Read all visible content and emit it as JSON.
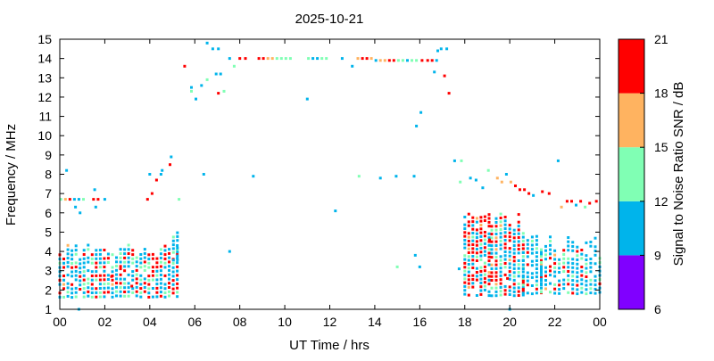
{
  "chart_data": {
    "type": "scatter",
    "title": "2025-10-21",
    "xlabel": "UT Time / hrs",
    "ylabel": "Frequency / MHz",
    "xlim": [
      0,
      24
    ],
    "ylim": [
      1,
      15
    ],
    "x_ticks": [
      "00",
      "02",
      "04",
      "06",
      "08",
      "10",
      "12",
      "14",
      "16",
      "18",
      "20",
      "22",
      "00"
    ],
    "y_ticks": [
      "1",
      "2",
      "3",
      "4",
      "5",
      "6",
      "7",
      "8",
      "9",
      "10",
      "11",
      "12",
      "13",
      "14",
      "15"
    ],
    "grid": false,
    "colorbar": {
      "label": "Signal to Noise Ratio SNR / dB",
      "range": [
        6,
        21
      ],
      "ticks": [
        "6",
        "9",
        "12",
        "15",
        "18",
        "21"
      ],
      "bands": [
        {
          "min": 6,
          "max": 9,
          "color": "#8000ff"
        },
        {
          "min": 9,
          "max": 12,
          "color": "#00b4eb"
        },
        {
          "min": 12,
          "max": 15,
          "color": "#80ffb4"
        },
        {
          "min": 15,
          "max": 18,
          "color": "#ffb360"
        },
        {
          "min": 18,
          "max": 21,
          "color": "#ff0000"
        }
      ]
    },
    "points": [
      [
        0.05,
        6.7,
        14
      ],
      [
        0.25,
        6.7,
        16
      ],
      [
        0.45,
        6.7,
        19
      ],
      [
        0.65,
        6.7,
        10
      ],
      [
        0.85,
        6.7,
        11
      ],
      [
        1.05,
        6.7,
        13
      ],
      [
        1.5,
        6.7,
        19
      ],
      [
        1.7,
        6.7,
        19
      ],
      [
        2.0,
        6.7,
        10
      ],
      [
        0.3,
        8.2,
        10
      ],
      [
        0.7,
        6.3,
        10
      ],
      [
        0.9,
        6.0,
        10
      ],
      [
        1.6,
        6.3,
        10
      ],
      [
        1.55,
        7.2,
        10
      ],
      [
        0.85,
        1.0,
        10
      ],
      [
        3.9,
        6.7,
        19
      ],
      [
        4.1,
        7.0,
        19
      ],
      [
        4.3,
        7.7,
        19
      ],
      [
        4.0,
        8.0,
        10
      ],
      [
        4.5,
        8.0,
        10
      ],
      [
        4.55,
        8.2,
        10
      ],
      [
        4.95,
        8.9,
        10
      ],
      [
        4.9,
        8.5,
        19
      ],
      [
        5.3,
        6.7,
        13
      ],
      [
        5.55,
        13.6,
        19
      ],
      [
        5.85,
        12.5,
        10
      ],
      [
        5.85,
        12.3,
        13
      ],
      [
        6.05,
        11.9,
        10
      ],
      [
        6.3,
        12.6,
        10
      ],
      [
        6.4,
        8.0,
        10
      ],
      [
        6.55,
        12.9,
        13
      ],
      [
        6.55,
        14.8,
        10
      ],
      [
        6.8,
        14.5,
        10
      ],
      [
        6.95,
        13.2,
        10
      ],
      [
        7.05,
        14.5,
        10
      ],
      [
        7.05,
        12.2,
        19
      ],
      [
        7.15,
        13.2,
        10
      ],
      [
        7.3,
        12.3,
        13
      ],
      [
        7.55,
        14.0,
        10
      ],
      [
        7.55,
        4.0,
        10
      ],
      [
        7.75,
        13.6,
        13
      ],
      [
        8.0,
        14.0,
        19
      ],
      [
        8.25,
        14.0,
        19
      ],
      [
        8.6,
        7.9,
        10
      ],
      [
        8.85,
        14.0,
        19
      ],
      [
        9.05,
        14.0,
        19
      ],
      [
        9.25,
        14.0,
        16
      ],
      [
        9.45,
        14.0,
        16
      ],
      [
        9.65,
        14.0,
        13
      ],
      [
        9.85,
        14.0,
        13
      ],
      [
        10.05,
        14.0,
        13
      ],
      [
        10.25,
        14.0,
        13
      ],
      [
        11.0,
        11.9,
        10
      ],
      [
        11.05,
        14.0,
        13
      ],
      [
        11.25,
        14.0,
        10
      ],
      [
        11.45,
        14.0,
        10
      ],
      [
        11.65,
        14.0,
        13
      ],
      [
        11.85,
        14.0,
        13
      ],
      [
        12.25,
        6.1,
        10
      ],
      [
        12.55,
        14.0,
        10
      ],
      [
        13.0,
        13.6,
        10
      ],
      [
        13.25,
        14.0,
        16
      ],
      [
        13.3,
        7.9,
        13
      ],
      [
        13.45,
        14.0,
        19
      ],
      [
        13.65,
        14.0,
        19
      ],
      [
        13.85,
        14.0,
        16
      ],
      [
        14.05,
        13.9,
        10
      ],
      [
        14.25,
        13.9,
        16
      ],
      [
        14.25,
        7.8,
        10
      ],
      [
        14.45,
        13.9,
        16
      ],
      [
        14.65,
        13.9,
        19
      ],
      [
        14.85,
        13.9,
        19
      ],
      [
        14.95,
        7.9,
        10
      ],
      [
        15.0,
        3.2,
        13
      ],
      [
        15.05,
        13.9,
        13
      ],
      [
        15.25,
        13.9,
        13
      ],
      [
        15.45,
        13.9,
        10
      ],
      [
        15.65,
        13.9,
        13
      ],
      [
        15.75,
        7.9,
        10
      ],
      [
        15.8,
        3.8,
        10
      ],
      [
        15.85,
        13.9,
        13
      ],
      [
        15.85,
        10.5,
        10
      ],
      [
        16.0,
        3.2,
        10
      ],
      [
        16.05,
        11.2,
        10
      ],
      [
        16.1,
        13.9,
        19
      ],
      [
        16.35,
        13.9,
        19
      ],
      [
        16.55,
        13.9,
        19
      ],
      [
        16.65,
        13.3,
        10
      ],
      [
        16.75,
        13.9,
        10
      ],
      [
        16.8,
        14.4,
        10
      ],
      [
        16.95,
        14.5,
        10
      ],
      [
        17.1,
        13.1,
        19
      ],
      [
        17.2,
        14.5,
        10
      ],
      [
        17.3,
        12.2,
        19
      ],
      [
        17.55,
        8.7,
        10
      ],
      [
        17.8,
        7.6,
        13
      ],
      [
        17.85,
        8.7,
        13
      ],
      [
        17.75,
        3.1,
        10
      ],
      [
        18.25,
        7.8,
        10
      ],
      [
        18.5,
        7.7,
        10
      ],
      [
        18.8,
        7.3,
        10
      ],
      [
        19.05,
        8.2,
        13
      ],
      [
        19.45,
        7.8,
        16
      ],
      [
        19.65,
        7.6,
        16
      ],
      [
        19.85,
        8.0,
        10
      ],
      [
        20.05,
        7.6,
        16
      ],
      [
        20.25,
        7.4,
        19
      ],
      [
        20.45,
        7.2,
        19
      ],
      [
        20.65,
        7.2,
        19
      ],
      [
        20.85,
        7.0,
        19
      ],
      [
        21.05,
        6.9,
        10
      ],
      [
        21.45,
        7.1,
        19
      ],
      [
        21.75,
        7.0,
        19
      ],
      [
        22.15,
        8.7,
        10
      ],
      [
        22.3,
        6.3,
        16
      ],
      [
        22.55,
        6.6,
        19
      ],
      [
        22.75,
        6.6,
        19
      ],
      [
        22.95,
        6.4,
        10
      ],
      [
        23.15,
        6.6,
        19
      ],
      [
        23.35,
        6.3,
        13
      ],
      [
        23.55,
        6.5,
        19
      ],
      [
        23.85,
        6.6,
        19
      ],
      [
        20.0,
        1.0,
        10
      ],
      [
        2.3,
        2.7,
        19
      ],
      [
        2.7,
        3.1,
        19
      ],
      [
        3.2,
        2.2,
        19
      ],
      [
        19.1,
        4.6,
        19
      ],
      [
        19.9,
        2.6,
        19
      ]
    ],
    "bands": [
      {
        "x0": 0.0,
        "x1": 5.3,
        "fmin": 1.6,
        "fmax": 4.5,
        "step": 0.22,
        "cols": 0.18,
        "mix": [
          0.55,
          0.17,
          0.03,
          0.25
        ],
        "seed": 11
      },
      {
        "x0": 5.05,
        "x1": 5.3,
        "fmin": 3.5,
        "fmax": 5.2,
        "step": 0.2,
        "cols": 0.18,
        "mix": [
          0.8,
          0.2,
          0.0,
          0.0
        ],
        "seed": 13
      },
      {
        "x0": 18.0,
        "x1": 19.2,
        "fmin": 1.7,
        "fmax": 7.3,
        "step": 0.2,
        "cols": 0.18,
        "mix": [
          0.35,
          0.15,
          0.05,
          0.45
        ],
        "seed": 17
      },
      {
        "x0": 19.2,
        "x1": 20.6,
        "fmin": 1.7,
        "fmax": 6.3,
        "step": 0.2,
        "cols": 0.2,
        "mix": [
          0.45,
          0.15,
          0.05,
          0.35
        ],
        "seed": 19
      },
      {
        "x0": 20.6,
        "x1": 21.4,
        "fmin": 1.8,
        "fmax": 5.0,
        "step": 0.21,
        "cols": 0.2,
        "mix": [
          0.6,
          0.15,
          0.05,
          0.2
        ],
        "seed": 23
      },
      {
        "x0": 21.4,
        "x1": 24.0,
        "fmin": 1.8,
        "fmax": 4.9,
        "step": 0.22,
        "cols": 0.2,
        "mix": [
          0.7,
          0.15,
          0.03,
          0.12
        ],
        "seed": 29
      }
    ],
    "band_snr": [
      10,
      13,
      16,
      19
    ]
  }
}
